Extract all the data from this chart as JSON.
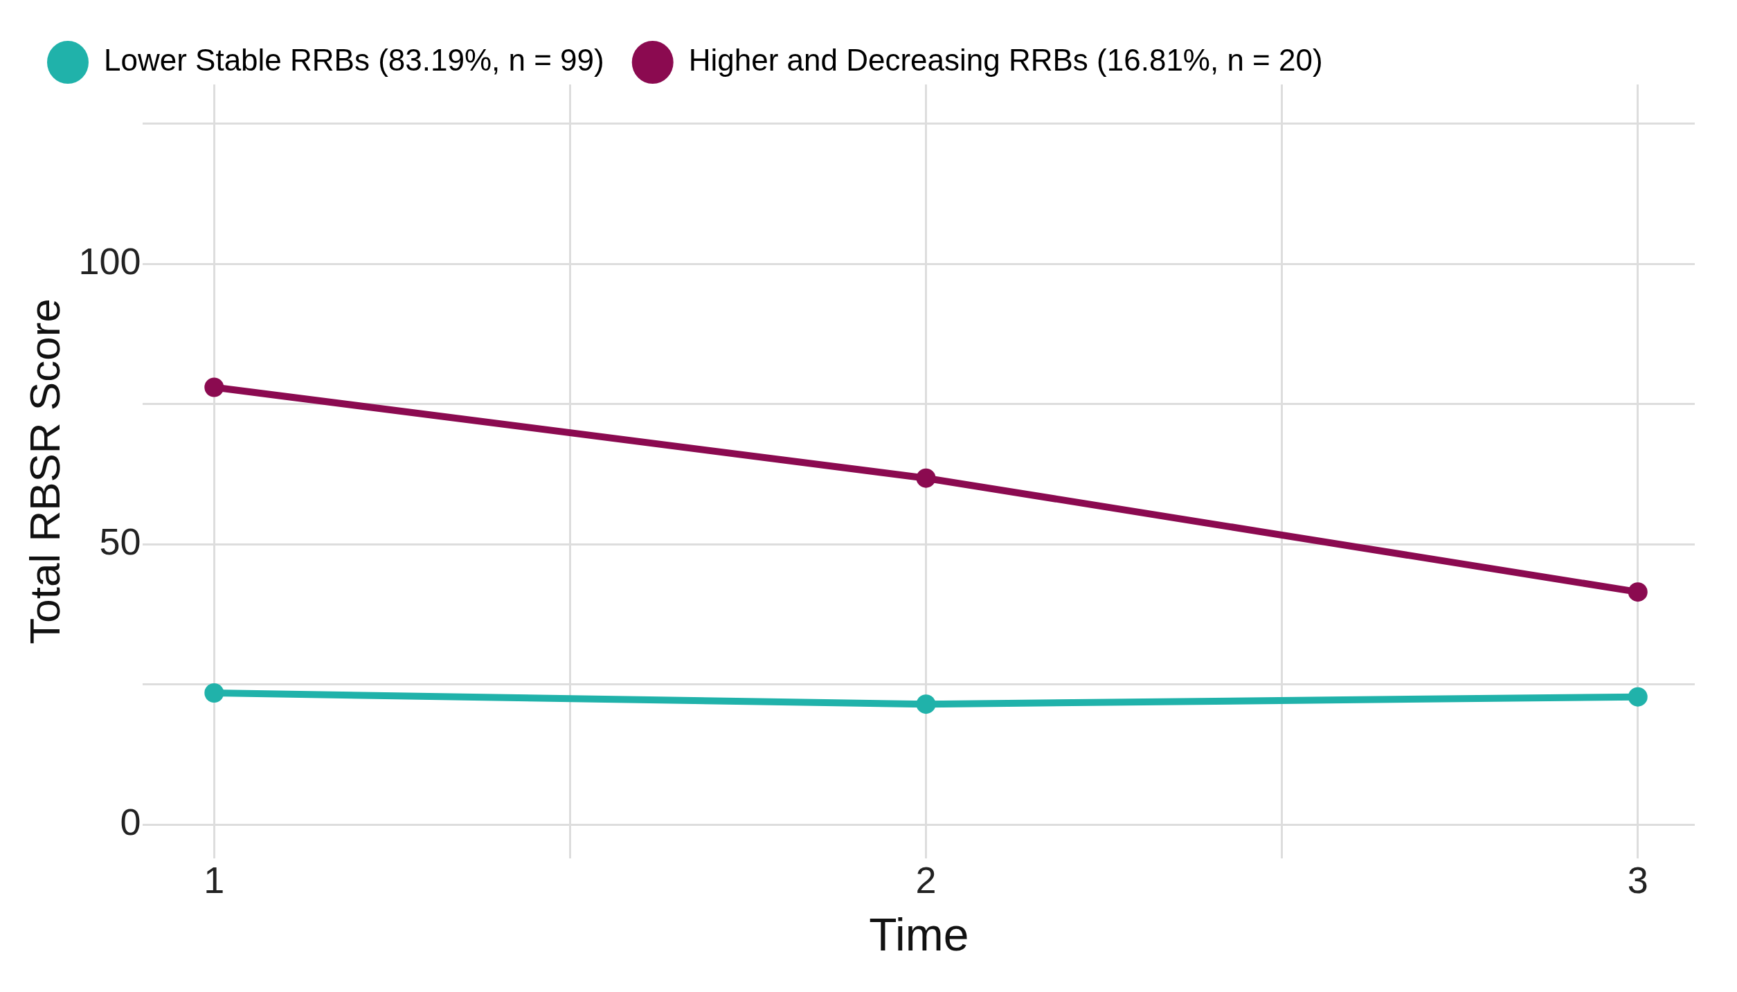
{
  "chart_data": {
    "type": "line",
    "xlabel": "Time",
    "ylabel": "Total RBSR Score",
    "x": [
      1,
      2,
      3
    ],
    "series": [
      {
        "name": "Lower Stable RRBs (83.19%, n = 99)",
        "color": "#20b2aa",
        "values": [
          23.5,
          21.5,
          22.8
        ]
      },
      {
        "name": "Higher and Decreasing RRBs (16.81%, n = 20)",
        "color": "#8b0a50",
        "values": [
          78,
          61.8,
          41.5
        ]
      }
    ],
    "xlim": [
      0.9,
      3.08
    ],
    "xticks": [
      1,
      {
        "value": 1.5,
        "label": null
      },
      2,
      {
        "value": 2.5,
        "label": null
      },
      3
    ],
    "ylim": [
      -6,
      132
    ],
    "yticks": [
      0,
      {
        "value": 25,
        "label": null
      },
      50,
      {
        "value": 75,
        "label": null
      },
      100,
      {
        "value": 125,
        "label": null
      }
    ],
    "grid": true,
    "legend": "top left",
    "marker": "circle",
    "line_style": "solid"
  }
}
